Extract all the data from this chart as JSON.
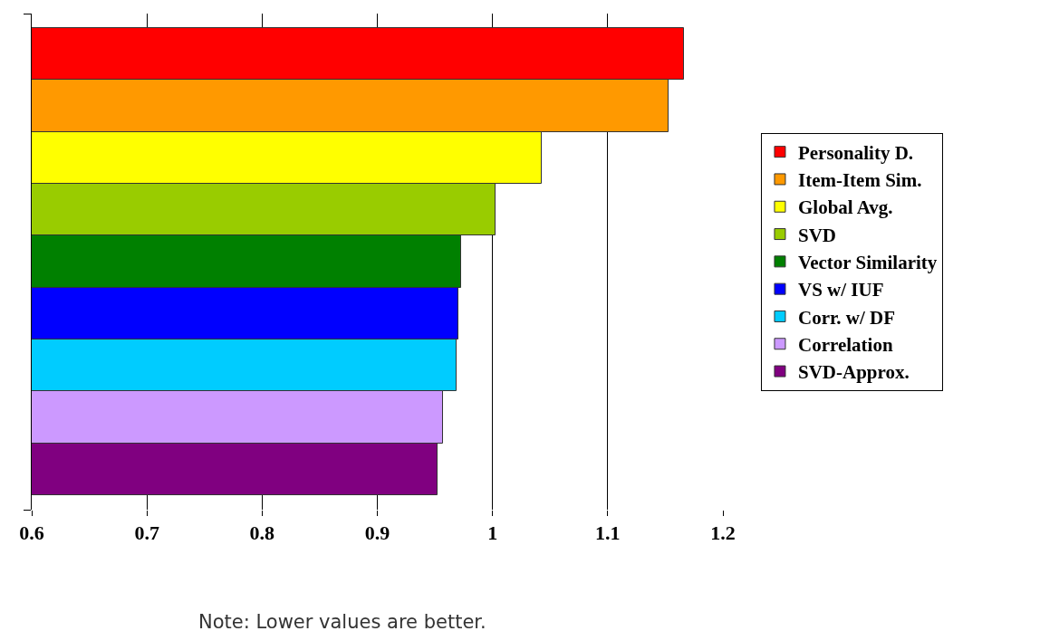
{
  "chart_data": {
    "type": "bar",
    "orientation": "horizontal",
    "categories": [
      null,
      null,
      null,
      null,
      null,
      null,
      null,
      null,
      null
    ],
    "series": [
      {
        "name": "Personality D.",
        "color": "#ff0000",
        "values": [
          1.166,
          null,
          null,
          null,
          null,
          null,
          null,
          null,
          null
        ]
      },
      {
        "name": "Item-Item Sim.",
        "color": "#ff9900",
        "values": [
          null,
          1.153,
          null,
          null,
          null,
          null,
          null,
          null,
          null
        ]
      },
      {
        "name": "Global Avg.",
        "color": "#ffff00",
        "values": [
          null,
          null,
          1.043,
          null,
          null,
          null,
          null,
          null,
          null
        ]
      },
      {
        "name": "SVD",
        "color": "#99cc00",
        "values": [
          null,
          null,
          null,
          1.003,
          null,
          null,
          null,
          null,
          null
        ]
      },
      {
        "name": "Vector Similarity",
        "color": "#008000",
        "values": [
          null,
          null,
          null,
          null,
          0.973,
          null,
          null,
          null,
          null
        ]
      },
      {
        "name": "VS w/ IUF",
        "color": "#0000ff",
        "values": [
          null,
          null,
          null,
          null,
          null,
          0.97,
          null,
          null,
          null
        ]
      },
      {
        "name": "Corr. w/ DF",
        "color": "#00ccff",
        "values": [
          null,
          null,
          null,
          null,
          null,
          null,
          0.969,
          null,
          null
        ]
      },
      {
        "name": "Correlation",
        "color": "#cc99ff",
        "values": [
          null,
          null,
          null,
          null,
          null,
          null,
          null,
          0.957,
          null
        ]
      },
      {
        "name": "SVD-Approx.",
        "color": "#800080",
        "values": [
          null,
          null,
          null,
          null,
          null,
          null,
          null,
          null,
          0.952
        ]
      }
    ],
    "xlim": [
      0.6,
      1.2
    ],
    "xticks": [
      0.6,
      0.7,
      0.8,
      0.9,
      1,
      1.1,
      1.2
    ],
    "grid": "x",
    "legend": "right",
    "tick_labels": "x",
    "annotations": [
      "Note: Lower values are better."
    ]
  }
}
